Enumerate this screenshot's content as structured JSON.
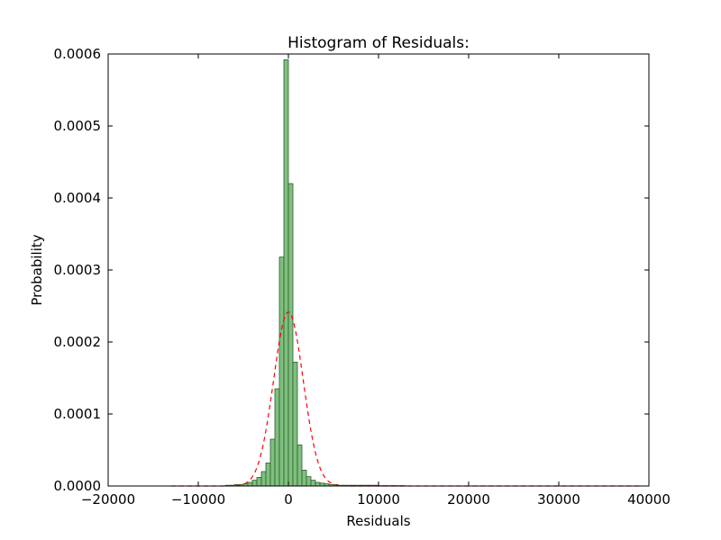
{
  "chart_data": {
    "type": "bar",
    "title": "Histogram of Residuals:",
    "xlabel": "Residuals",
    "ylabel": "Probability",
    "xlim": [
      -20000,
      40000
    ],
    "ylim": [
      0,
      0.0006
    ],
    "x_ticks": [
      -20000,
      -10000,
      0,
      10000,
      20000,
      30000,
      40000
    ],
    "x_tick_labels": [
      "−20000",
      "−10000",
      "0",
      "10000",
      "20000",
      "30000",
      "40000"
    ],
    "y_ticks": [
      0,
      0.0001,
      0.0002,
      0.0003,
      0.0004,
      0.0005,
      0.0006
    ],
    "y_tick_labels": [
      "0.0000",
      "0.0001",
      "0.0002",
      "0.0003",
      "0.0004",
      "0.0005",
      "0.0006"
    ],
    "grid": false,
    "histogram": {
      "bin_width": 500,
      "bin_starts": [
        -7000,
        -6500,
        -6000,
        -5500,
        -5000,
        -4500,
        -4000,
        -3500,
        -3000,
        -2500,
        -2000,
        -1500,
        -1000,
        -500,
        0,
        500,
        1000,
        1500,
        2000,
        2500,
        3000,
        3500,
        4000,
        4500,
        5000,
        5500,
        6000,
        6500,
        7000,
        7500,
        8000,
        8500,
        9000,
        9500,
        10000,
        10500,
        11000,
        11500,
        12000,
        12500
      ],
      "values": [
        1e-06,
        1e-06,
        2e-06,
        2e-06,
        3e-06,
        5e-06,
        8e-06,
        1.2e-05,
        2e-05,
        3.2e-05,
        6.5e-05,
        0.000135,
        0.000318,
        0.000592,
        0.00042,
        0.000172,
        5.7e-05,
        2.2e-05,
        1.3e-05,
        8e-06,
        5e-06,
        4e-06,
        3e-06,
        2e-06,
        2e-06,
        1e-06,
        1e-06,
        1e-06,
        1e-06,
        1e-06,
        1e-06,
        1e-06,
        1e-06,
        1e-06,
        5e-07,
        5e-07,
        5e-07,
        5e-07,
        5e-07,
        5e-07
      ],
      "fill_color": "#7fbf7f",
      "edge_color": "#2f5f2f"
    },
    "normal_fit": {
      "mean": 0,
      "std": 1650,
      "x_range": [
        -13000,
        39000
      ],
      "color": "#ff0000",
      "style": "dashed"
    }
  }
}
